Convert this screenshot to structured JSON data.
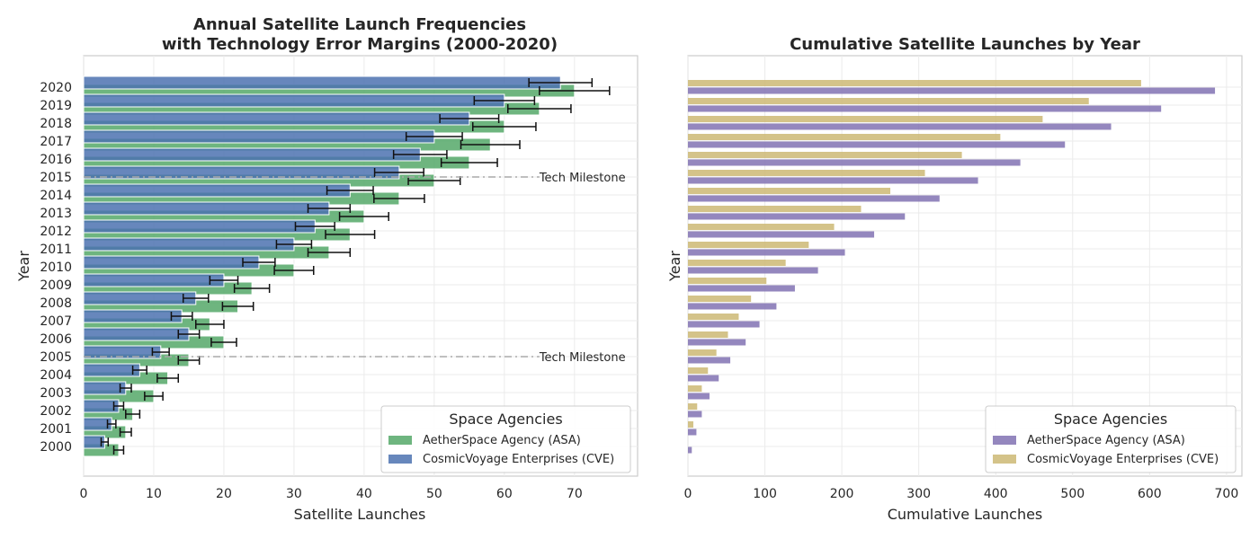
{
  "chart_data": [
    {
      "type": "bar",
      "orientation": "horizontal",
      "title": "Annual Satellite Launch Frequencies\nwith Technology Error Margins (2000-2020)",
      "xlabel": "Satellite Launches",
      "ylabel": "Year",
      "categories": [
        "2000",
        "2001",
        "2002",
        "2003",
        "2004",
        "2005",
        "2006",
        "2007",
        "2008",
        "2009",
        "2010",
        "2011",
        "2012",
        "2013",
        "2014",
        "2015",
        "2016",
        "2017",
        "2018",
        "2019",
        "2020"
      ],
      "xlim": [
        0,
        79
      ],
      "xticks": [
        0,
        10,
        20,
        30,
        40,
        50,
        60,
        70
      ],
      "grid": true,
      "legend": {
        "title": "Space Agencies",
        "placement": "lower-right",
        "entries": [
          "AetherSpace Agency (ASA)",
          "CosmicVoyage Enterprises (CVE)"
        ]
      },
      "series": [
        {
          "name": "AetherSpace Agency (ASA)",
          "color": "#55a868",
          "values": [
            5,
            6,
            7,
            10,
            12,
            15,
            20,
            18,
            22,
            24,
            30,
            35,
            38,
            40,
            45,
            50,
            55,
            58,
            60,
            65,
            70
          ],
          "errors": [
            0.7,
            0.8,
            1.0,
            1.3,
            1.5,
            1.5,
            1.8,
            2.0,
            2.2,
            2.5,
            2.8,
            3.0,
            3.5,
            3.5,
            3.6,
            3.7,
            4.0,
            4.2,
            4.5,
            4.5,
            5.0
          ]
        },
        {
          "name": "CosmicVoyage Enterprises (CVE)",
          "color": "#4c72b0",
          "values": [
            3,
            4,
            5,
            6,
            8,
            11,
            15,
            14,
            16,
            20,
            25,
            30,
            33,
            35,
            38,
            45,
            48,
            50,
            55,
            60,
            68
          ],
          "errors": [
            0.5,
            0.6,
            0.7,
            0.8,
            1.0,
            1.2,
            1.5,
            1.5,
            1.8,
            2.0,
            2.3,
            2.5,
            2.8,
            3.0,
            3.3,
            3.5,
            3.8,
            4.0,
            4.2,
            4.3,
            4.5
          ]
        }
      ],
      "annotations": [
        {
          "text": "Tech Milestone",
          "year": "2005"
        },
        {
          "text": "Tech Milestone",
          "year": "2015"
        }
      ]
    },
    {
      "type": "bar",
      "orientation": "horizontal",
      "title": "Cumulative Satellite Launches by Year",
      "xlabel": "Cumulative Launches",
      "ylabel": "Year",
      "categories": [
        "2000",
        "2001",
        "2002",
        "2003",
        "2004",
        "2005",
        "2006",
        "2007",
        "2008",
        "2009",
        "2010",
        "2011",
        "2012",
        "2013",
        "2014",
        "2015",
        "2016",
        "2017",
        "2018",
        "2019",
        "2020"
      ],
      "xlim": [
        0,
        720
      ],
      "xticks": [
        0,
        100,
        200,
        300,
        400,
        500,
        600,
        700
      ],
      "grid": true,
      "legend": {
        "title": "Space Agencies",
        "placement": "lower-right",
        "entries": [
          "AetherSpace Agency (ASA)",
          "CosmicVoyage Enterprises (CVE)"
        ]
      },
      "series": [
        {
          "name": "AetherSpace Agency (ASA)",
          "color": "#8172b3",
          "values": [
            5,
            11,
            18,
            28,
            40,
            55,
            75,
            93,
            115,
            139,
            169,
            204,
            242,
            282,
            327,
            377,
            432,
            490,
            550,
            615,
            685
          ]
        },
        {
          "name": "CosmicVoyage Enterprises (CVE)",
          "color": "#ccb974",
          "values": [
            3,
            7,
            12,
            18,
            26,
            37,
            52,
            66,
            82,
            102,
            127,
            157,
            190,
            225,
            263,
            308,
            356,
            406,
            461,
            521,
            589
          ]
        }
      ]
    }
  ]
}
